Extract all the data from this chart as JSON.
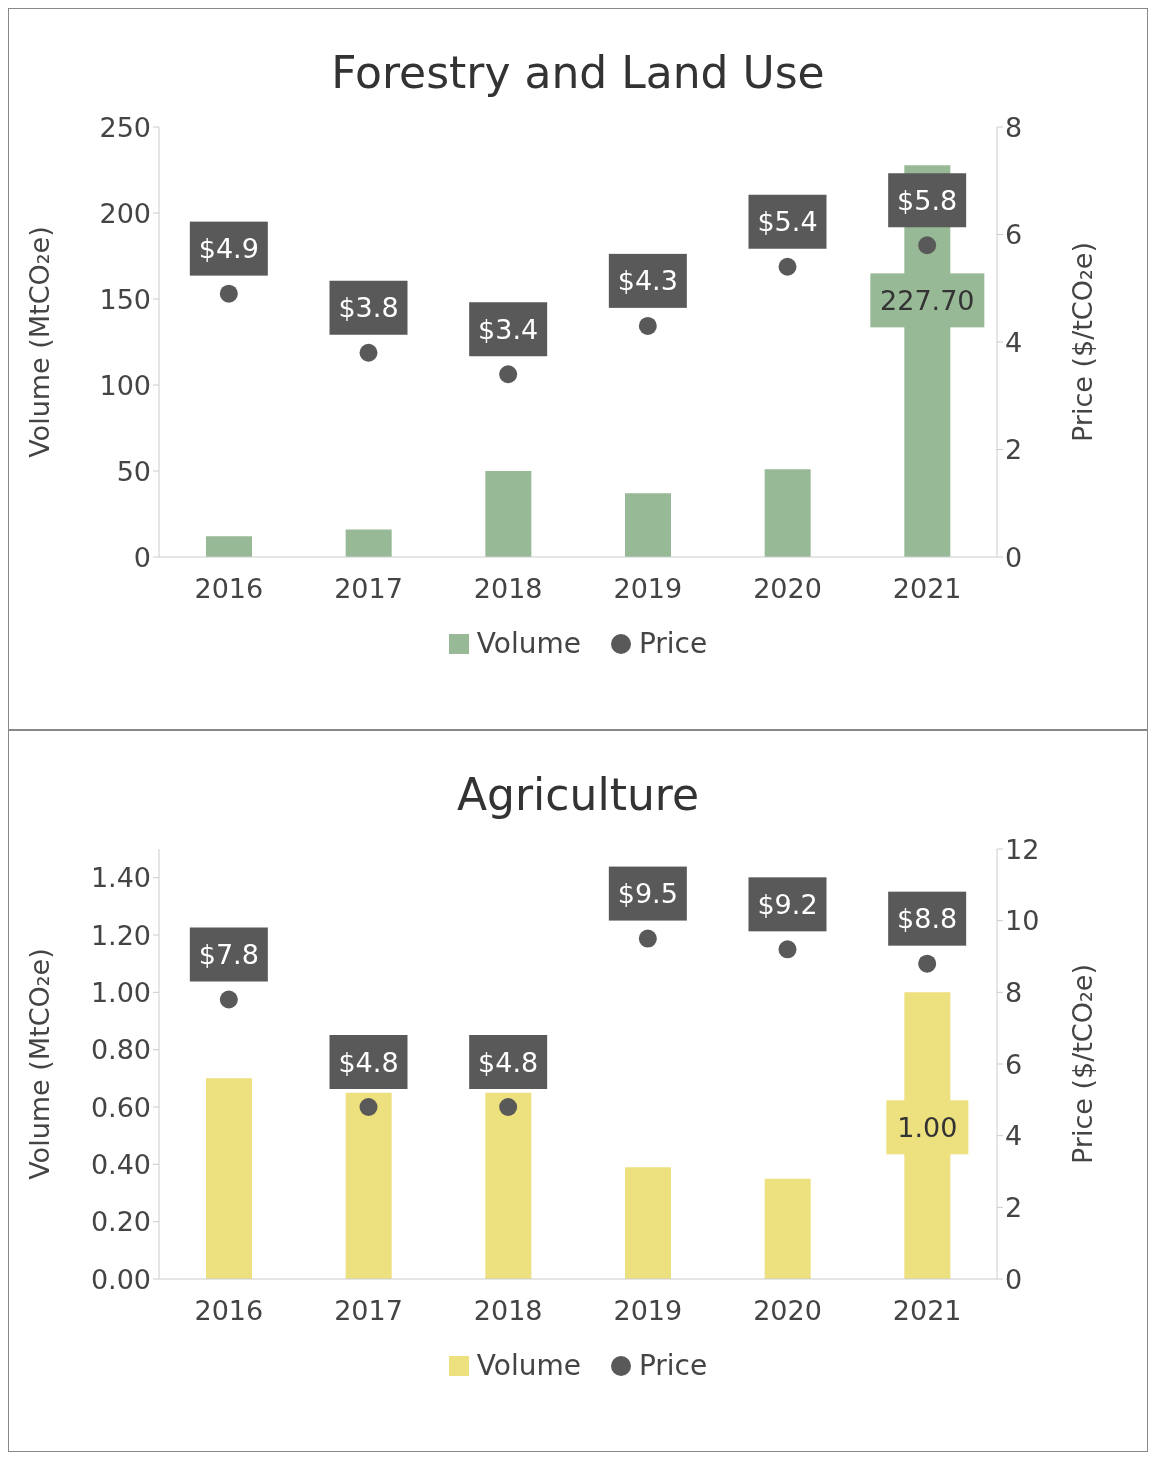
{
  "chart_data": [
    {
      "type": "bar",
      "title": "Forestry and Land Use",
      "categories": [
        "2016",
        "2017",
        "2018",
        "2019",
        "2020",
        "2021"
      ],
      "ylabel": "Volume (MtCO₂e)",
      "y2label": "Price ($/tCO₂e)",
      "ylim": [
        0,
        250
      ],
      "yticks": [
        0,
        50,
        100,
        150,
        200,
        250
      ],
      "y2lim": [
        0,
        8
      ],
      "y2ticks": [
        0,
        2,
        4,
        6,
        8
      ],
      "legend": "bottom",
      "marker": "circle",
      "series": [
        {
          "name": "Volume",
          "color": "#98b996",
          "values": [
            12,
            16,
            50,
            37,
            51,
            227.7
          ],
          "value_labels": [
            null,
            null,
            null,
            null,
            null,
            "227.70"
          ]
        },
        {
          "name": "Price",
          "type": "scatter",
          "axis": "y2",
          "color": "#595959",
          "values": [
            4.9,
            3.8,
            3.4,
            4.3,
            5.4,
            5.8
          ],
          "value_labels": [
            "$4.9",
            "$3.8",
            "$3.4",
            "$4.3",
            "$5.4",
            "$5.8"
          ]
        }
      ]
    },
    {
      "type": "bar",
      "title": "Agriculture",
      "categories": [
        "2016",
        "2017",
        "2018",
        "2019",
        "2020",
        "2021"
      ],
      "ylabel": "Volume (MtCO₂e)",
      "y2label": "Price ($/tCO₂e)",
      "ylim": [
        0,
        1.5
      ],
      "yticks": [
        {
          "value": 0,
          "label": "0.00"
        },
        {
          "value": 0.2,
          "label": "0.20"
        },
        {
          "value": 0.4,
          "label": "0.40"
        },
        {
          "value": 0.6,
          "label": "0.60"
        },
        {
          "value": 0.8,
          "label": "0.80"
        },
        {
          "value": 1,
          "label": "1.00"
        },
        {
          "value": 1.2,
          "label": "1.20"
        },
        {
          "value": 1.4,
          "label": "1.40"
        }
      ],
      "y2lim": [
        0,
        12
      ],
      "y2ticks": [
        0,
        2,
        4,
        6,
        8,
        10,
        12
      ],
      "legend": "bottom",
      "marker": "circle",
      "series": [
        {
          "name": "Volume",
          "color": "#ede07e",
          "values": [
            0.7,
            0.65,
            0.65,
            0.39,
            0.35,
            1.0
          ],
          "value_labels": [
            null,
            null,
            null,
            null,
            null,
            "1.00"
          ]
        },
        {
          "name": "Price",
          "type": "scatter",
          "axis": "y2",
          "color": "#595959",
          "values": [
            7.8,
            4.8,
            4.8,
            9.5,
            9.2,
            8.8
          ],
          "value_labels": [
            "$7.8",
            "$4.8",
            "$4.8",
            "$9.5",
            "$9.2",
            "$8.8"
          ]
        }
      ]
    }
  ]
}
